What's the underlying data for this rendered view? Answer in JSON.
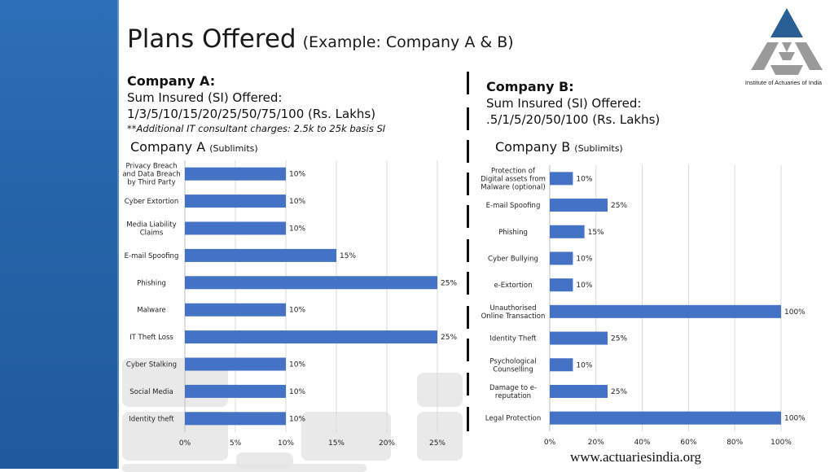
{
  "slide": {
    "title": "Plans Offered",
    "subtitle": "(Example: Company A & B)",
    "logo_caption": "Institute of Actuaries of India",
    "footer_url": "www.actuariesindia.org",
    "accent_color": "#2563a8",
    "bar_color": "#4472c4",
    "logo_colors": {
      "top": "#2a5f95",
      "bottom": "#9a9a9a"
    }
  },
  "company_a": {
    "name": "Company A:",
    "si_label": "Sum Insured (SI) Offered:",
    "si_values": "1/3/5/10/15/20/25/50/75/100 (Rs. Lakhs)",
    "note": "**Additional IT consultant charges: 2.5k to 25k basis SI"
  },
  "company_b": {
    "name": "Company B:",
    "si_label": "Sum Insured (SI) Offered:",
    "si_values": ".5/1/5/20/50/100 (Rs. Lakhs)"
  },
  "chart_data": [
    {
      "type": "bar",
      "orientation": "horizontal",
      "title": "Company A",
      "subtitle": "(Sublimits)",
      "categories": [
        "Privacy Breach|and Data Breach|by Third Party",
        "Cyber Extortion",
        "Media Liability|Claims",
        "E-mail Spoofing",
        "Phishing",
        "Malware",
        "IT Theft Loss",
        "Cyber Stalking",
        "Social Media",
        "Identity theft"
      ],
      "values": [
        10,
        10,
        10,
        15,
        25,
        10,
        25,
        10,
        10,
        10
      ],
      "value_labels": [
        "10%",
        "10%",
        "10%",
        "15%",
        "25%",
        "10%",
        "25%",
        "10%",
        "10%",
        "10%"
      ],
      "xlim": [
        0,
        25
      ],
      "xticks": [
        0,
        5,
        10,
        15,
        20,
        25
      ],
      "xtick_labels": [
        "0%",
        "5%",
        "10%",
        "15%",
        "20%",
        "25%"
      ],
      "grid": true
    },
    {
      "type": "bar",
      "orientation": "horizontal",
      "title": "Company B",
      "subtitle": "(Sublimits)",
      "categories": [
        "Protection of|Digital assets from|Malware (optional)",
        "E-mail Spoofing",
        "Phishing",
        "Cyber Bullying",
        "e-Extortion",
        "Unauthorised|Online Transaction",
        "Identity Theft",
        "Psychological|Counselling",
        "Damage to e-|reputation",
        "Legal Protection"
      ],
      "values": [
        10,
        25,
        15,
        10,
        10,
        100,
        25,
        10,
        25,
        100
      ],
      "value_labels": [
        "10%",
        "25%",
        "15%",
        "10%",
        "10%",
        "100%",
        "25%",
        "10%",
        "25%",
        "100%"
      ],
      "xlim": [
        0,
        100
      ],
      "xticks": [
        0,
        20,
        40,
        60,
        80,
        100
      ],
      "xtick_labels": [
        "0%",
        "20%",
        "40%",
        "60%",
        "80%",
        "100%"
      ],
      "grid": true
    }
  ]
}
